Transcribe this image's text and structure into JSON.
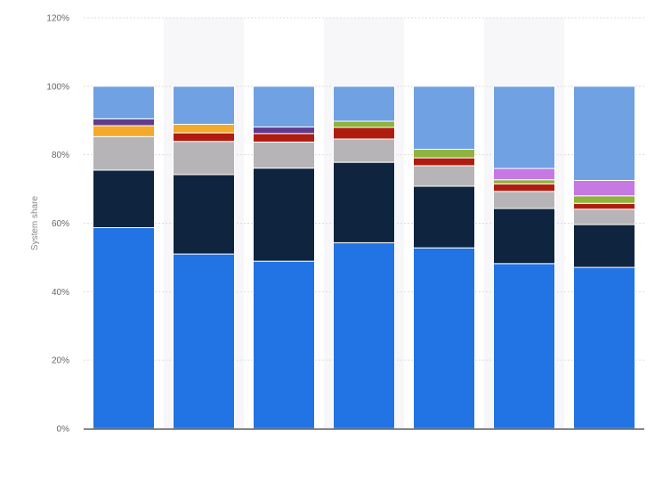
{
  "chart_data": {
    "type": "bar",
    "stacked": true,
    "ylabel": "System share",
    "ylim": [
      0,
      120
    ],
    "yticks": [
      0,
      20,
      40,
      60,
      80,
      100,
      120
    ],
    "ytick_labels": [
      "0%",
      "20%",
      "40%",
      "60%",
      "80%",
      "100%",
      "120%"
    ],
    "grid": true,
    "legend": "none",
    "categories": [
      "",
      "",
      "",
      "",
      "",
      "",
      ""
    ],
    "series": [
      {
        "color": "#2273e3",
        "values": [
          58.7,
          51.0,
          48.9,
          54.3,
          52.8,
          48.2,
          47.1
        ]
      },
      {
        "color": "#0f243f",
        "values": [
          16.8,
          23.2,
          27.2,
          23.5,
          18.0,
          16.1,
          12.5
        ]
      },
      {
        "color": "#b7b4b7",
        "values": [
          9.8,
          9.7,
          7.6,
          6.8,
          6.0,
          5.0,
          4.5
        ]
      },
      {
        "color": "#b01d10",
        "values": [
          0,
          2.5,
          2.5,
          3.4,
          2.3,
          2.2,
          1.7
        ]
      },
      {
        "color": "#f3a92a",
        "values": [
          3.2,
          2.5,
          0,
          0,
          0,
          0,
          0
        ]
      },
      {
        "color": "#8fb33c",
        "values": [
          0,
          0,
          0,
          1.8,
          2.5,
          1.2,
          2.2
        ]
      },
      {
        "color": "#613b8c",
        "values": [
          2.0,
          0,
          1.9,
          0,
          0,
          0,
          0
        ]
      },
      {
        "color": "#c678e3",
        "values": [
          0,
          0,
          0,
          0,
          0,
          3.3,
          4.5
        ]
      },
      {
        "color": "#6fa1e3",
        "values": [
          9.5,
          11.1,
          11.9,
          10.2,
          18.4,
          24.0,
          27.5
        ]
      }
    ],
    "column_band_color": "#f7f7fa",
    "banded_columns": [
      1,
      3,
      5
    ]
  }
}
